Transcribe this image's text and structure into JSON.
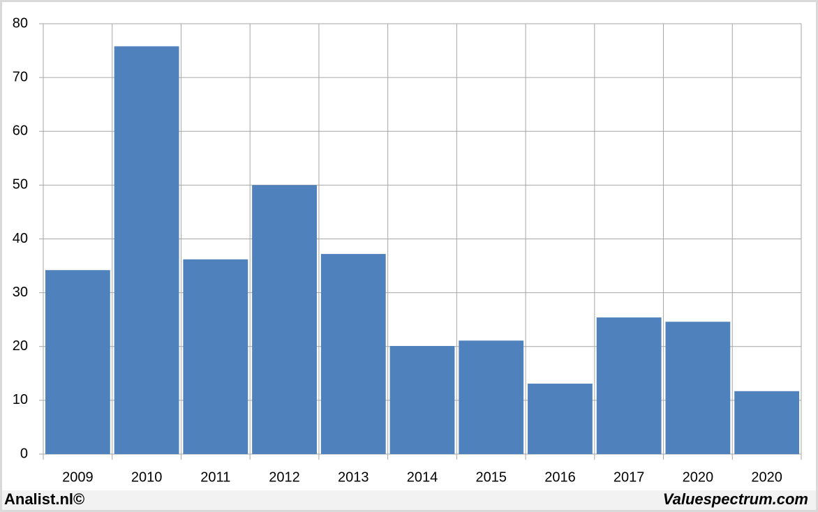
{
  "chart_data": {
    "type": "bar",
    "categories": [
      "2009",
      "2010",
      "2011",
      "2012",
      "2013",
      "2014",
      "2015",
      "2016",
      "2017",
      "2020",
      "2020"
    ],
    "values": [
      34.2,
      75.8,
      36.2,
      50,
      37.2,
      20.1,
      21.1,
      13.1,
      25.4,
      24.6,
      11.7
    ],
    "color": "#4f81bd",
    "ylim": [
      0,
      80
    ],
    "yticks": [
      0,
      10,
      20,
      30,
      40,
      50,
      60,
      70,
      80
    ],
    "grid": true,
    "footer_left": "Analist.nl©",
    "footer_right": "Valuespectrum.com"
  }
}
